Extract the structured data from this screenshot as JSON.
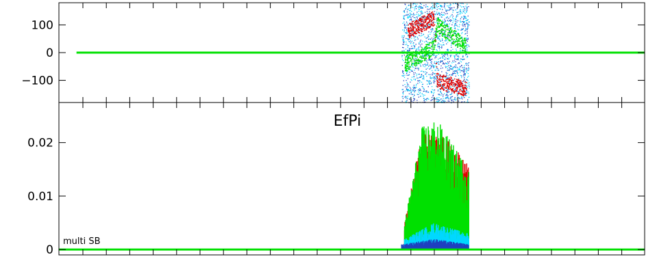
{
  "chart_data": [
    {
      "type": "scatter",
      "panel": "phase",
      "title": "",
      "ylim": [
        -180,
        180
      ],
      "yticks": [
        100,
        0,
        -100
      ],
      "ytick_labels": [
        "100",
        "0",
        "−100"
      ],
      "xlim": [
        0,
        1
      ],
      "grid": false,
      "series": [
        {
          "color": "#1e3fbf",
          "kind": "noise",
          "x_range": [
            0.585,
            0.7
          ],
          "y_range": [
            -180,
            180
          ]
        },
        {
          "color": "#00d8ff",
          "kind": "noise",
          "x_range": [
            0.585,
            0.7
          ],
          "y_range": [
            -180,
            180
          ]
        },
        {
          "color": "#e00000",
          "kind": "trend",
          "x": [
            0.595,
            0.64,
            0.645,
            0.695
          ],
          "y": [
            80,
            125,
            -100,
            -130
          ]
        },
        {
          "color": "#00e000",
          "kind": "trend",
          "x": [
            0.59,
            0.64,
            0.645,
            0.695
          ],
          "y": [
            -40,
            20,
            100,
            25
          ]
        },
        {
          "color": "#00e000",
          "kind": "baseline",
          "x": [
            0.03,
            1.0
          ],
          "y": [
            0,
            0
          ]
        }
      ]
    },
    {
      "type": "line",
      "panel": "efpi",
      "title": "EfPi",
      "annotation": "multi SB",
      "ylim": [
        -0.001,
        0.0275
      ],
      "yticks": [
        0.02,
        0.01,
        0
      ],
      "ytick_labels": [
        "0.02",
        "0.01",
        "0"
      ],
      "xlim": [
        0,
        1
      ],
      "grid": false,
      "series": [
        {
          "color": "#e00000",
          "envelope": {
            "x": [
              0.59,
              0.62,
              0.66,
              0.7
            ],
            "y": [
              0.005,
              0.022,
              0.021,
              0.016
            ]
          }
        },
        {
          "color": "#00e000",
          "envelope": {
            "x": [
              0.59,
              0.62,
              0.645,
              0.7
            ],
            "y": [
              0.005,
              0.023,
              0.0245,
              0.015
            ]
          }
        },
        {
          "color": "#00d8ff",
          "envelope": {
            "x": [
              0.59,
              0.64,
              0.7
            ],
            "y": [
              0.002,
              0.005,
              0.003
            ]
          }
        },
        {
          "color": "#1e3fbf",
          "envelope": {
            "x": [
              0.585,
              0.64,
              0.7
            ],
            "y": [
              0.001,
              0.002,
              0.001
            ]
          }
        }
      ]
    }
  ]
}
